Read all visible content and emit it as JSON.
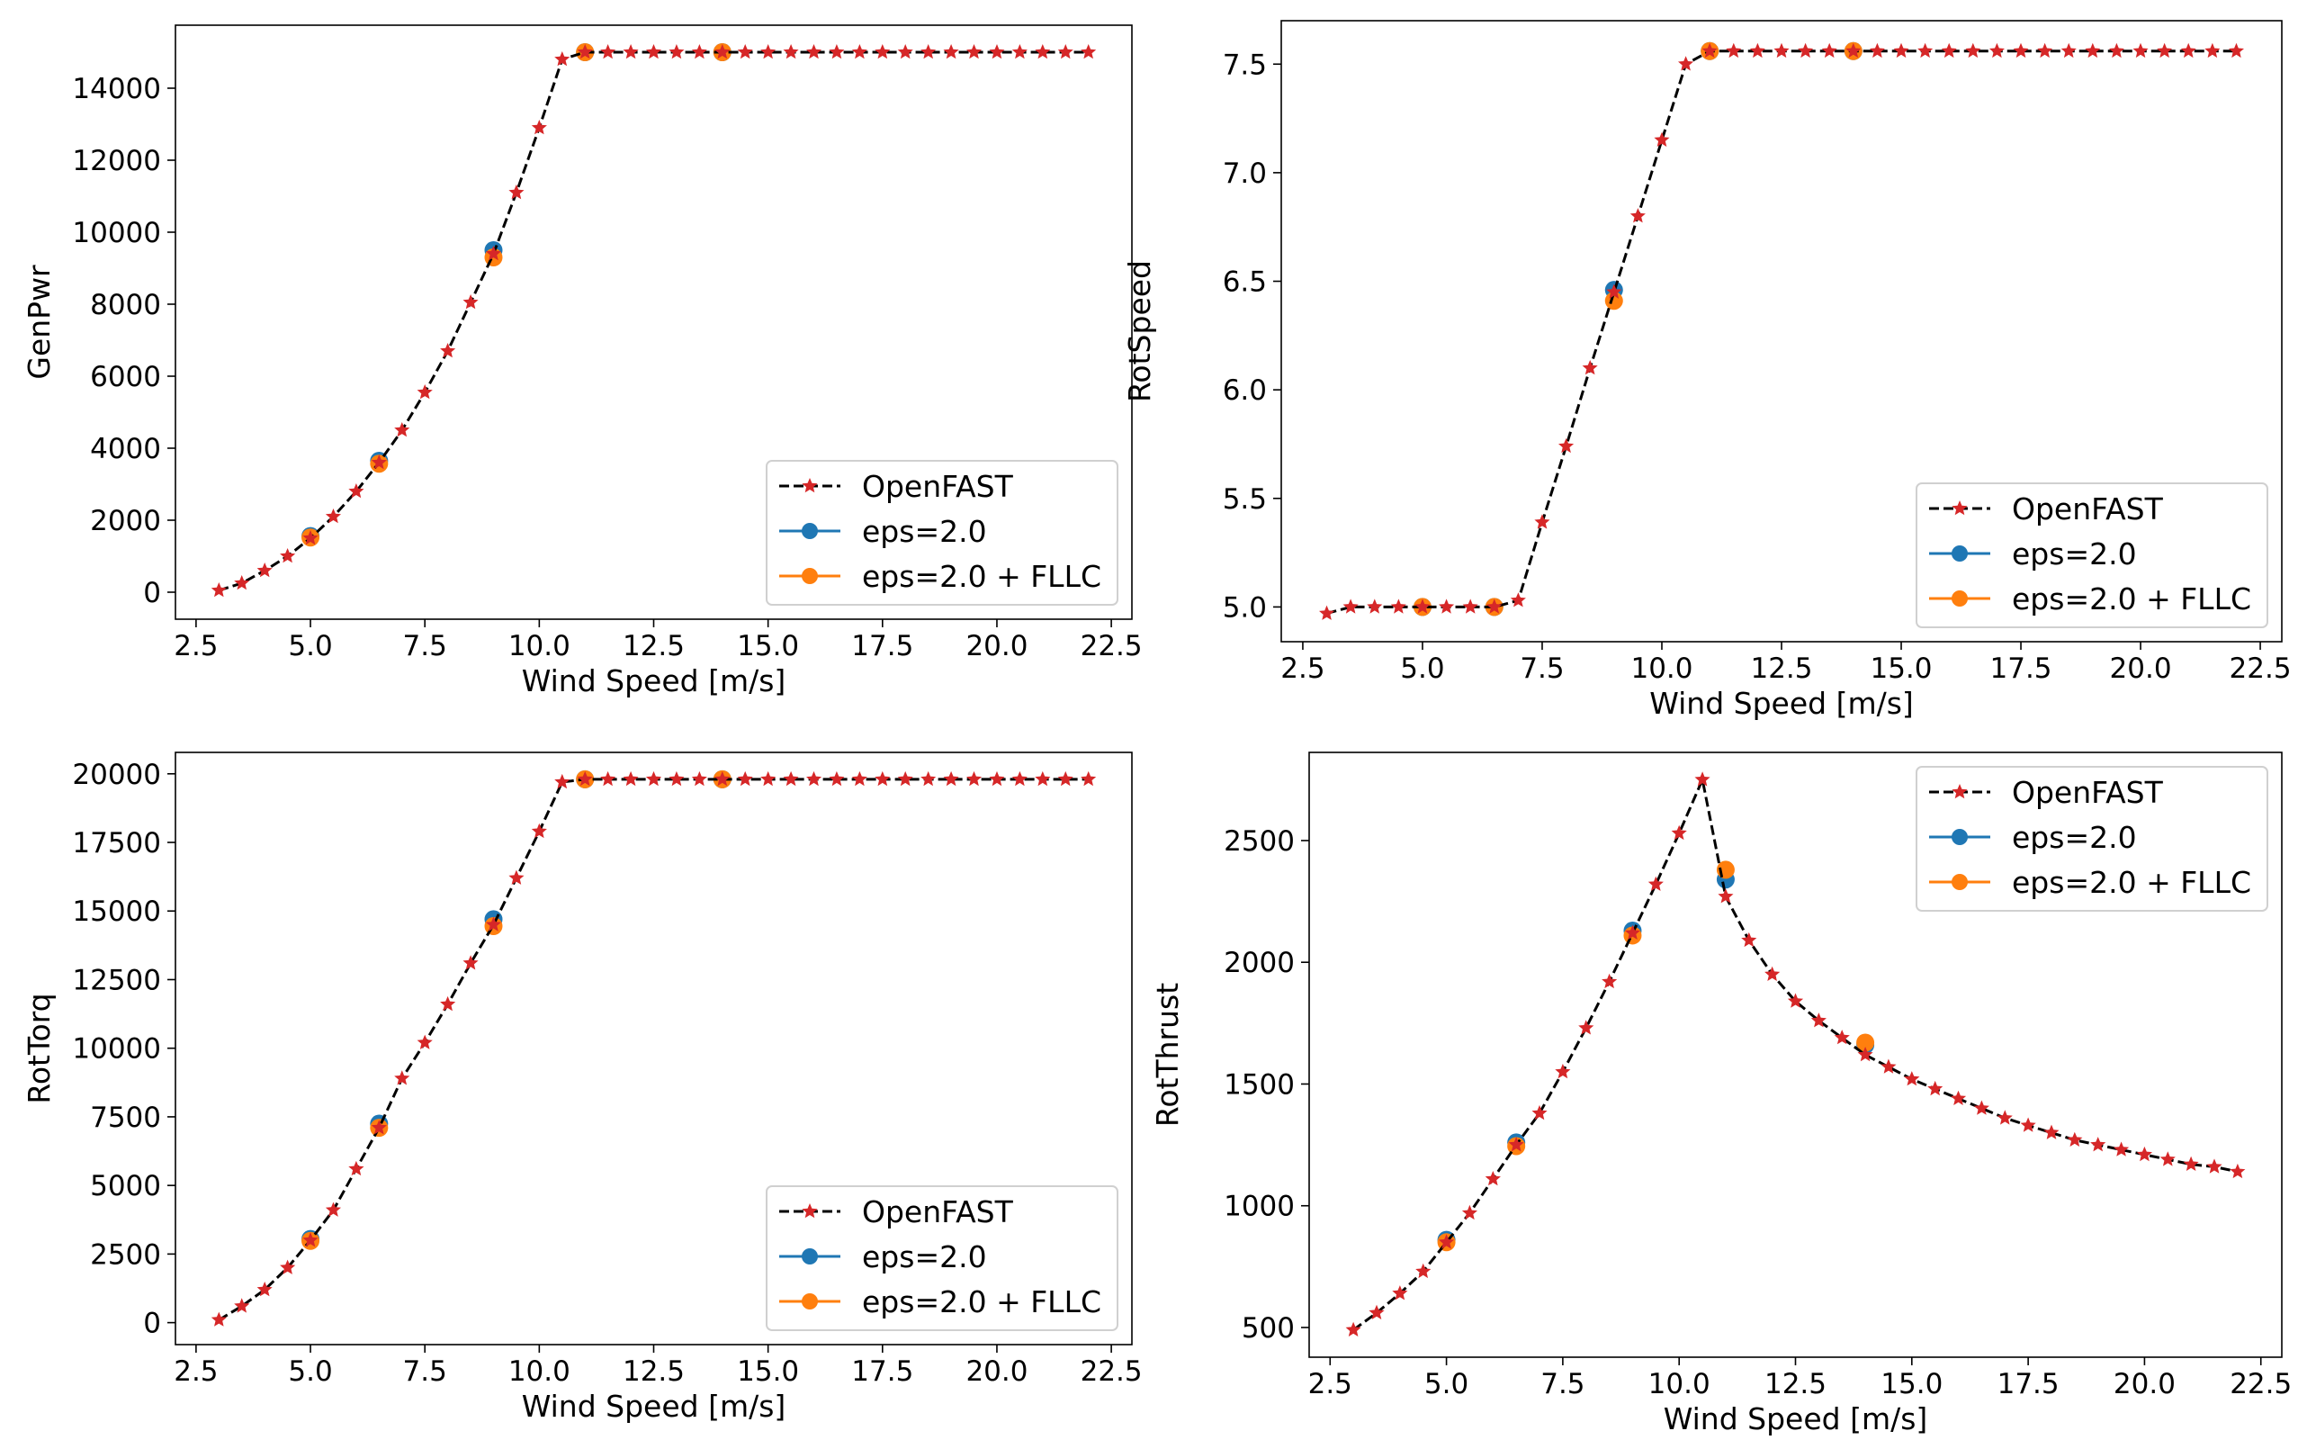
{
  "colors": {
    "openfast": "#d62728",
    "eps": "#1f77b4",
    "fllc": "#ff7f0e",
    "line": "#000000"
  },
  "chart_data": [
    {
      "type": "line",
      "xlabel": "Wind Speed [m/s]",
      "ylabel": "GenPwr",
      "xlim": [
        2.05,
        22.95
      ],
      "ylim": [
        -750,
        15750
      ],
      "xticks": [
        2.5,
        5.0,
        7.5,
        10.0,
        12.5,
        15.0,
        17.5,
        20.0,
        22.5
      ],
      "xtick_labels": [
        "2.5",
        "5.0",
        "7.5",
        "10.0",
        "12.5",
        "15.0",
        "17.5",
        "20.0",
        "22.5"
      ],
      "yticks": [
        0,
        2000,
        4000,
        6000,
        8000,
        10000,
        12000,
        14000
      ],
      "ytick_labels": [
        "0",
        "2000",
        "4000",
        "6000",
        "8000",
        "10000",
        "12000",
        "14000"
      ],
      "legend_loc": "lower-right",
      "legend": [
        "OpenFAST",
        "eps=2.0",
        "eps=2.0 + FLLC"
      ],
      "series": [
        {
          "name": "OpenFAST",
          "x": [
            3,
            3.5,
            4,
            4.5,
            5,
            5.5,
            6,
            6.5,
            7,
            7.5,
            8,
            8.5,
            9,
            9.5,
            10,
            10.5,
            11,
            11.5,
            12,
            12.5,
            13,
            13.5,
            14,
            14.5,
            15,
            15.5,
            16,
            16.5,
            17,
            17.5,
            18,
            18.5,
            19,
            19.5,
            20,
            20.5,
            21,
            21.5,
            22
          ],
          "y": [
            50,
            250,
            600,
            1000,
            1500,
            2100,
            2800,
            3600,
            4500,
            5550,
            6700,
            8050,
            9400,
            11100,
            12900,
            14800,
            15000,
            15000,
            15000,
            15000,
            15000,
            15000,
            15000,
            15000,
            15000,
            15000,
            15000,
            15000,
            15000,
            15000,
            15000,
            15000,
            15000,
            15000,
            15000,
            15000,
            15000,
            15000,
            15000
          ]
        },
        {
          "name": "eps=2.0",
          "x": [
            5,
            6.5,
            9,
            11,
            14
          ],
          "y": [
            1560,
            3650,
            9500,
            15000,
            15000
          ]
        },
        {
          "name": "eps=2.0 + FLLC",
          "x": [
            5,
            6.5,
            9,
            11,
            14
          ],
          "y": [
            1520,
            3570,
            9300,
            15000,
            15000
          ]
        }
      ]
    },
    {
      "type": "line",
      "xlabel": "Wind Speed [m/s]",
      "ylabel": "RotSpeed",
      "xlim": [
        2.05,
        22.95
      ],
      "ylim": [
        4.84,
        7.7
      ],
      "xticks": [
        2.5,
        5.0,
        7.5,
        10.0,
        12.5,
        15.0,
        17.5,
        20.0,
        22.5
      ],
      "xtick_labels": [
        "2.5",
        "5.0",
        "7.5",
        "10.0",
        "12.5",
        "15.0",
        "17.5",
        "20.0",
        "22.5"
      ],
      "yticks": [
        5.0,
        5.5,
        6.0,
        6.5,
        7.0,
        7.5
      ],
      "ytick_labels": [
        "5.0",
        "5.5",
        "6.0",
        "6.5",
        "7.0",
        "7.5"
      ],
      "legend_loc": "lower-right",
      "legend": [
        "OpenFAST",
        "eps=2.0",
        "eps=2.0 + FLLC"
      ],
      "series": [
        {
          "name": "OpenFAST",
          "x": [
            3,
            3.5,
            4,
            4.5,
            5,
            5.5,
            6,
            6.5,
            7,
            7.5,
            8,
            8.5,
            9,
            9.5,
            10,
            10.5,
            11,
            11.5,
            12,
            12.5,
            13,
            13.5,
            14,
            14.5,
            15,
            15.5,
            16,
            16.5,
            17,
            17.5,
            18,
            18.5,
            19,
            19.5,
            20,
            20.5,
            21,
            21.5,
            22
          ],
          "y": [
            4.97,
            5.0,
            5.0,
            5.0,
            5.0,
            5.0,
            5.0,
            5.0,
            5.03,
            5.39,
            5.74,
            6.1,
            6.45,
            6.8,
            7.15,
            7.5,
            7.56,
            7.56,
            7.56,
            7.56,
            7.56,
            7.56,
            7.56,
            7.56,
            7.56,
            7.56,
            7.56,
            7.56,
            7.56,
            7.56,
            7.56,
            7.56,
            7.56,
            7.56,
            7.56,
            7.56,
            7.56,
            7.56,
            7.56
          ]
        },
        {
          "name": "eps=2.0",
          "x": [
            5,
            6.5,
            9,
            11,
            14
          ],
          "y": [
            5.0,
            5.0,
            6.46,
            7.56,
            7.56
          ]
        },
        {
          "name": "eps=2.0 + FLLC",
          "x": [
            5,
            6.5,
            9,
            11,
            14
          ],
          "y": [
            5.0,
            5.0,
            6.41,
            7.56,
            7.56
          ]
        }
      ]
    },
    {
      "type": "line",
      "xlabel": "Wind Speed [m/s]",
      "ylabel": "RotTorq",
      "xlim": [
        2.05,
        22.95
      ],
      "ylim": [
        -800,
        20780
      ],
      "xticks": [
        2.5,
        5.0,
        7.5,
        10.0,
        12.5,
        15.0,
        17.5,
        20.0,
        22.5
      ],
      "xtick_labels": [
        "2.5",
        "5.0",
        "7.5",
        "10.0",
        "12.5",
        "15.0",
        "17.5",
        "20.0",
        "22.5"
      ],
      "yticks": [
        0,
        2500,
        5000,
        7500,
        10000,
        12500,
        15000,
        17500,
        20000
      ],
      "ytick_labels": [
        "0",
        "2500",
        "5000",
        "7500",
        "10000",
        "12500",
        "15000",
        "17500",
        "20000"
      ],
      "legend_loc": "lower-right",
      "legend": [
        "OpenFAST",
        "eps=2.0",
        "eps=2.0 + FLLC"
      ],
      "series": [
        {
          "name": "OpenFAST",
          "x": [
            3,
            3.5,
            4,
            4.5,
            5,
            5.5,
            6,
            6.5,
            7,
            7.5,
            8,
            8.5,
            9,
            9.5,
            10,
            10.5,
            11,
            11.5,
            12,
            12.5,
            13,
            13.5,
            14,
            14.5,
            15,
            15.5,
            16,
            16.5,
            17,
            17.5,
            18,
            18.5,
            19,
            19.5,
            20,
            20.5,
            21,
            21.5,
            22
          ],
          "y": [
            100,
            600,
            1200,
            2000,
            3000,
            4100,
            5600,
            7100,
            8900,
            10200,
            11600,
            13100,
            14500,
            16200,
            17900,
            19700,
            19800,
            19800,
            19800,
            19800,
            19800,
            19800,
            19800,
            19800,
            19800,
            19800,
            19800,
            19800,
            19800,
            19800,
            19800,
            19800,
            19800,
            19800,
            19800,
            19800,
            19800,
            19800,
            19800
          ]
        },
        {
          "name": "eps=2.0",
          "x": [
            5,
            6.5,
            9,
            11,
            14
          ],
          "y": [
            3050,
            7250,
            14700,
            19800,
            19800
          ]
        },
        {
          "name": "eps=2.0 + FLLC",
          "x": [
            5,
            6.5,
            9,
            11,
            14
          ],
          "y": [
            2980,
            7100,
            14450,
            19800,
            19800
          ]
        }
      ]
    },
    {
      "type": "line",
      "xlabel": "Wind Speed [m/s]",
      "ylabel": "RotThrust",
      "xlim": [
        2.05,
        22.95
      ],
      "ylim": [
        378,
        2862
      ],
      "xticks": [
        2.5,
        5.0,
        7.5,
        10.0,
        12.5,
        15.0,
        17.5,
        20.0,
        22.5
      ],
      "xtick_labels": [
        "2.5",
        "5.0",
        "7.5",
        "10.0",
        "12.5",
        "15.0",
        "17.5",
        "20.0",
        "22.5"
      ],
      "yticks": [
        500,
        1000,
        1500,
        2000,
        2500
      ],
      "ytick_labels": [
        "500",
        "1000",
        "1500",
        "2000",
        "2500"
      ],
      "legend_loc": "upper-right",
      "legend": [
        "OpenFAST",
        "eps=2.0",
        "eps=2.0 + FLLC"
      ],
      "series": [
        {
          "name": "OpenFAST",
          "x": [
            3,
            3.5,
            4,
            4.5,
            5,
            5.5,
            6,
            6.5,
            7,
            7.5,
            8,
            8.5,
            9,
            9.5,
            10,
            10.5,
            11,
            11.5,
            12,
            12.5,
            13,
            13.5,
            14,
            14.5,
            15,
            15.5,
            16,
            16.5,
            17,
            17.5,
            18,
            18.5,
            19,
            19.5,
            20,
            20.5,
            21,
            21.5,
            22
          ],
          "y": [
            490,
            560,
            640,
            730,
            850,
            970,
            1110,
            1250,
            1380,
            1550,
            1730,
            1920,
            2120,
            2320,
            2530,
            2750,
            2270,
            2090,
            1950,
            1840,
            1760,
            1690,
            1620,
            1570,
            1520,
            1480,
            1440,
            1400,
            1360,
            1330,
            1300,
            1270,
            1250,
            1230,
            1210,
            1190,
            1170,
            1160,
            1140
          ]
        },
        {
          "name": "eps=2.0",
          "x": [
            5,
            6.5,
            9,
            11,
            14
          ],
          "y": [
            860,
            1260,
            2130,
            2340,
            1660
          ]
        },
        {
          "name": "eps=2.0 + FLLC",
          "x": [
            5,
            6.5,
            9,
            11,
            14
          ],
          "y": [
            850,
            1245,
            2110,
            2380,
            1670
          ]
        }
      ]
    }
  ]
}
